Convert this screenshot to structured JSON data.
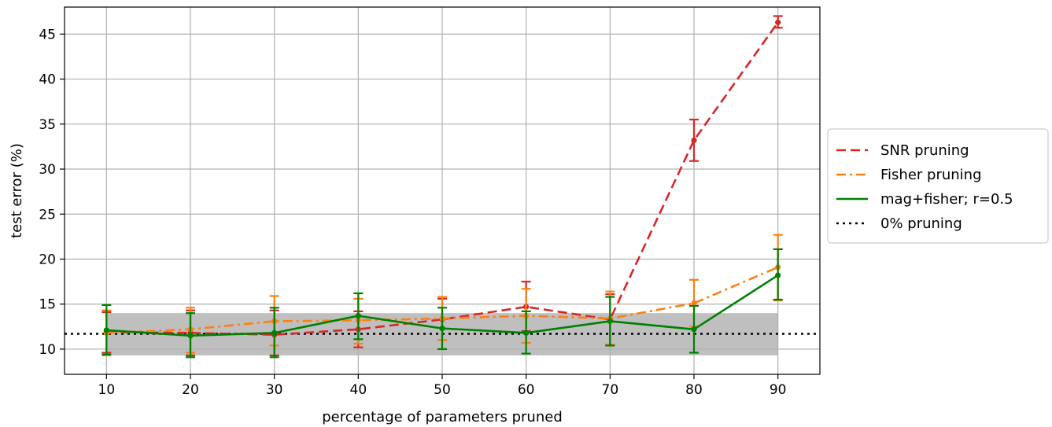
{
  "chart_data": {
    "type": "line",
    "xlabel": "percentage of parameters pruned",
    "ylabel": "test error (%)",
    "x": [
      10,
      20,
      30,
      40,
      50,
      60,
      70,
      80,
      90
    ],
    "xlim": [
      5,
      95
    ],
    "ylim": [
      7.2,
      48.0
    ],
    "xticks": [
      10,
      20,
      30,
      40,
      50,
      60,
      70,
      80,
      90
    ],
    "yticks": [
      10,
      15,
      20,
      25,
      30,
      35,
      40,
      45
    ],
    "grid": true,
    "legend_position": "outside-right",
    "baseline": {
      "name": "0% pruning",
      "value": 11.7,
      "band": [
        9.3,
        14.0
      ],
      "color": "#000000",
      "band_color": "#808080"
    },
    "series": [
      {
        "name": "SNR pruning",
        "color": "#d62728",
        "dash": "dashed",
        "values": [
          11.9,
          11.8,
          11.6,
          12.2,
          13.3,
          14.7,
          13.3,
          33.2,
          46.3
        ],
        "err_low": [
          9.6,
          9.3,
          9.3,
          10.2,
          11.0,
          12.0,
          10.4,
          30.9,
          45.7
        ],
        "err_high": [
          14.1,
          14.3,
          14.3,
          14.2,
          15.6,
          17.5,
          16.1,
          35.5,
          47.0
        ]
      },
      {
        "name": "Fisher pruning",
        "color": "#ff7f0e",
        "dash": "dashdot",
        "values": [
          11.8,
          12.2,
          13.1,
          13.2,
          13.4,
          13.7,
          13.4,
          15.1,
          19.1
        ],
        "err_low": [
          9.3,
          9.6,
          10.4,
          10.6,
          11.0,
          10.7,
          10.5,
          12.5,
          15.4
        ],
        "err_high": [
          14.3,
          14.6,
          15.9,
          15.6,
          15.8,
          16.7,
          16.4,
          17.7,
          22.7
        ]
      },
      {
        "name": "mag+fisher; r=0.5",
        "color": "#008000",
        "dash": "solid",
        "values": [
          12.1,
          11.5,
          11.8,
          13.7,
          12.3,
          11.8,
          13.1,
          12.2,
          18.2
        ],
        "err_low": [
          9.4,
          9.1,
          9.1,
          11.1,
          10.0,
          9.5,
          10.4,
          9.6,
          15.5
        ],
        "err_high": [
          14.9,
          14.0,
          14.6,
          16.2,
          14.6,
          14.2,
          15.8,
          14.8,
          21.1
        ]
      }
    ]
  }
}
